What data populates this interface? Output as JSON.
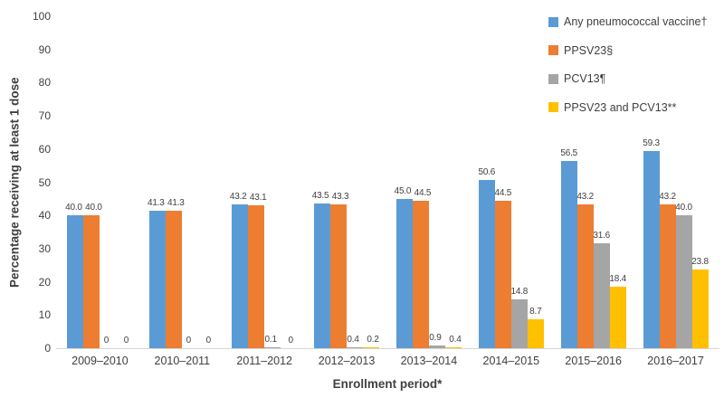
{
  "chart_data": {
    "type": "bar",
    "title": "",
    "xlabel": "Enrollment period*",
    "ylabel": "Percentage receiving at least 1 dose",
    "ylim": [
      0,
      100
    ],
    "yticks": [
      0,
      10,
      20,
      30,
      40,
      50,
      60,
      70,
      80,
      90,
      100
    ],
    "grid": false,
    "legend_position": "top-right",
    "axis_text_color": "#404040",
    "axis_line_color": "#d6d6d6",
    "categories": [
      "2009–2010",
      "2010–2011",
      "2011–2012",
      "2012–2013",
      "2013–2014",
      "2014–2015",
      "2015–2016",
      "2016–2017"
    ],
    "series": [
      {
        "name": "Any pneumococcal vaccine†",
        "color": "#5B9BD5",
        "values": [
          40.0,
          41.3,
          43.2,
          43.5,
          45.0,
          50.6,
          56.5,
          59.3
        ],
        "labels": [
          "40.0",
          "41.3",
          "43.2",
          "43.5",
          "45.0",
          "50.6",
          "56.5",
          "59.3"
        ]
      },
      {
        "name": "PPSV23§",
        "color": "#ED7D31",
        "values": [
          40.0,
          41.3,
          43.1,
          43.3,
          44.5,
          44.5,
          43.2,
          43.2
        ],
        "labels": [
          "40.0",
          "41.3",
          "43.1",
          "43.3",
          "44.5",
          "44.5",
          "43.2",
          "43.2"
        ]
      },
      {
        "name": "PCV13¶",
        "color": "#A5A5A5",
        "values": [
          0,
          0,
          0.1,
          0.4,
          0.9,
          14.8,
          31.6,
          40.0
        ],
        "labels": [
          "0",
          "0",
          "0.1",
          "0.4",
          "0.9",
          "14.8",
          "31.6",
          "40.0"
        ]
      },
      {
        "name": "PPSV23 and PCV13**",
        "color": "#FFC000",
        "values": [
          0,
          0,
          0,
          0.2,
          0.4,
          8.7,
          18.4,
          23.8
        ],
        "labels": [
          "0",
          "0",
          "0",
          "0.2",
          "0.4",
          "8.7",
          "18.4",
          "23.8"
        ]
      }
    ]
  }
}
